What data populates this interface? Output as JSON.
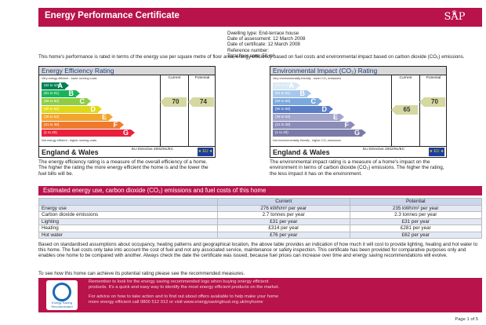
{
  "header": {
    "title": "Energy Performance Certificate",
    "logo_text": "SAP"
  },
  "dwelling": [
    "Dwelling type: End-terrace house",
    "Date of assessment: 12 March 2008",
    "Date of certificate: 12 March 2008",
    "Reference number:",
    "Total floor area: 58 m²"
  ],
  "performance_note": "This home's performance is rated in terms of the energy use per square metre of floor area, energy efficiency based on fuel costs and environmental impact based on carbon dioxide (CO₂) emissions.",
  "efficiency": {
    "title": "Energy Efficiency Rating",
    "col_current": "Current",
    "col_potential": "Potential",
    "top_note": "Very energy efficient - lower running costs",
    "bottom_note": "Not energy efficient - higher running costs",
    "bands": [
      {
        "range": "(92 to 100)",
        "letter": "A",
        "color": "#008054"
      },
      {
        "range": "(81 to 91)",
        "letter": "B",
        "color": "#19b459"
      },
      {
        "range": "(69 to 80)",
        "letter": "C",
        "color": "#8dce46"
      },
      {
        "range": "(55 to 68)",
        "letter": "D",
        "color": "#e0d91a"
      },
      {
        "range": "(39 to 54)",
        "letter": "E",
        "color": "#f2a52f"
      },
      {
        "range": "(21 to 38)",
        "letter": "F",
        "color": "#ee7a2e"
      },
      {
        "range": "(1 to 20)",
        "letter": "G",
        "color": "#e9203c"
      }
    ],
    "current": 70,
    "potential": 74,
    "region": "England & Wales",
    "directive": "EU Directive 2002/91/EC",
    "flag_text": "★ EU ★",
    "description": "The energy efficiency rating is a measure of the overall efficiency of a home. The higher the rating the more energy efficient the home is and the lower the fuel bills will be."
  },
  "environment": {
    "title": "Environmental Impact (CO₂) Rating",
    "col_current": "Current",
    "col_potential": "Potential",
    "top_note": "Very environmentally friendly - lower CO₂ emissions",
    "bottom_note": "Not environmentally friendly - higher CO₂ emissions",
    "bands": [
      {
        "range": "(92 to 100)",
        "letter": "A",
        "color": "#d8e8f6"
      },
      {
        "range": "(81 to 91)",
        "letter": "B",
        "color": "#a7c8ec"
      },
      {
        "range": "(69 to 80)",
        "letter": "C",
        "color": "#7ca9dd"
      },
      {
        "range": "(55 to 68)",
        "letter": "D",
        "color": "#5a7fc7"
      },
      {
        "range": "(39 to 54)",
        "letter": "E",
        "color": "#a2a4cb"
      },
      {
        "range": "(21 to 38)",
        "letter": "F",
        "color": "#8c8cb8"
      },
      {
        "range": "(1 to 20)",
        "letter": "G",
        "color": "#7a7aa8"
      }
    ],
    "current": 65,
    "potential": 70,
    "region": "England & Wales",
    "directive": "EU Directive 2002/91/EC",
    "flag_text": "★ EU ★",
    "description": "The environmental impact rating is a measure of a home's impact on the environment in terms of carbon dioxide (CO₂) emissions. The higher the rating, the less impact it has on the environment."
  },
  "costs": {
    "title": "Estimated energy use, carbon dioxide (CO₂) emissions and fuel costs of this home",
    "headers": [
      "",
      "Current",
      "Potential"
    ],
    "rows": [
      [
        "Energy use",
        "276 kWh/m² per year",
        "235 kWh/m² per year"
      ],
      [
        "Carbon dioxide emissions",
        "2.7 tonnes per year",
        "2.3 tonnes per year"
      ],
      [
        "Lighting",
        "£31 per year",
        "£31 per year"
      ],
      [
        "Heating",
        "£314 per year",
        "£281 per year"
      ],
      [
        "Hot water",
        "£76 per year",
        "£62 per year"
      ]
    ]
  },
  "basis": "Based on standardised assumptions about occupancy, heating patterns and geographical location, the above table provides an indication of how much it will cost to provide lighting, heating and hot water to this home. The fuel costs only take into account the cost of fuel and not any associated service, maintenance or safety inspection. This certificate has been provided for comparative purposes only and enables one home to be compared with another. Always check the date the certificate was issued, because fuel prices can increase over time and energy saving recommendations will evolve.",
  "measures": "To see how this home can achieve its potential rating please see the recommended measures.",
  "banner": {
    "line1": "Remember to look for the energy saving recommended logo when buying energy efficient",
    "line2": "products. It's a quick and easy way to identify the most energy efficient products on the market.",
    "line3": "For advice on how to take action and to find out about offers available to help make your home",
    "line4": "more energy efficient call 0800 512 012 or visit www.energysavingtrust.org.uk/myhome",
    "logo_text": "Energy Saving Recommended"
  },
  "page": "Page 1 of 5"
}
